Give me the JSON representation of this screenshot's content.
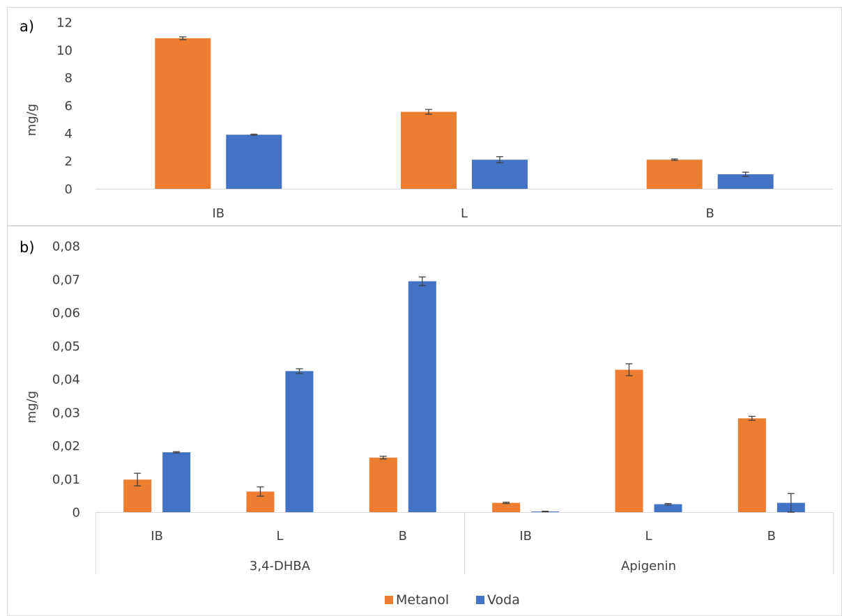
{
  "colors": {
    "metanol": "#ED7D31",
    "voda": "#4472C4",
    "axis": "#D9D9D9",
    "text": "#404040",
    "error": "#404040"
  },
  "legend": {
    "position": "bottom",
    "items": [
      "Metanol",
      "Voda"
    ]
  },
  "chart_data": [
    {
      "panel_label": "a)",
      "type": "bar",
      "ylabel": "mg/g",
      "ylim": [
        0,
        12
      ],
      "yticks": [
        "0",
        "2",
        "4",
        "6",
        "8",
        "10",
        "12"
      ],
      "categories": [
        "IB",
        "L",
        "B"
      ],
      "series": [
        {
          "name": "Metanol",
          "values": [
            10.85,
            5.55,
            2.1
          ],
          "errors": [
            0.1,
            0.17,
            0.05
          ]
        },
        {
          "name": "Voda",
          "values": [
            3.9,
            2.1,
            1.05
          ],
          "errors": [
            0.04,
            0.22,
            0.15
          ]
        }
      ]
    },
    {
      "panel_label": "b)",
      "type": "bar",
      "ylabel": "mg/g",
      "ylim": [
        0,
        0.08
      ],
      "yticks": [
        "0",
        "0,01",
        "0,02",
        "0,03",
        "0,04",
        "0,05",
        "0,06",
        "0,07",
        "0,08"
      ],
      "groups": [
        "3,4-DHBA",
        "Apigenin"
      ],
      "categories": [
        "IB",
        "L",
        "B",
        "IB",
        "L",
        "B"
      ],
      "series": [
        {
          "name": "Metanol",
          "values": [
            0.0098,
            0.0062,
            0.0164,
            0.0028,
            0.0428,
            0.0282
          ],
          "errors": [
            0.0019,
            0.0014,
            0.0004,
            0.0002,
            0.0018,
            0.0006
          ]
        },
        {
          "name": "Voda",
          "values": [
            0.018,
            0.0424,
            0.0694,
            0.0002,
            0.0024,
            0.0028
          ],
          "errors": [
            0.0002,
            0.0007,
            0.0013,
            0.0001,
            0.0002,
            0.0028
          ]
        }
      ]
    }
  ]
}
